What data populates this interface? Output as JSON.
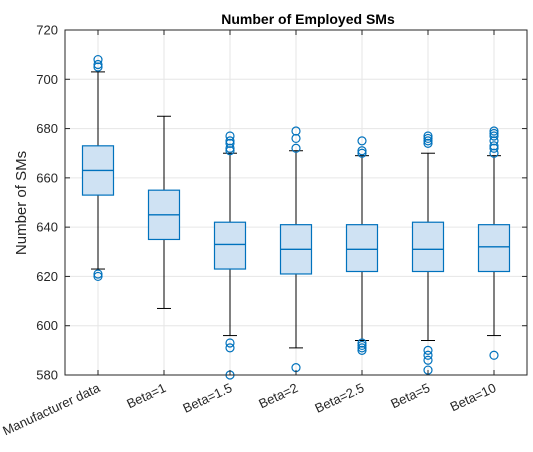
{
  "chart_data": {
    "type": "boxplot",
    "title": "Number of Employed SMs",
    "xlabel": "",
    "ylabel": "Number of SMs",
    "ylim": [
      580,
      720
    ],
    "yticks": [
      580,
      600,
      620,
      640,
      660,
      680,
      700,
      720
    ],
    "grid": true,
    "colors": {
      "box_edge": "#0072BD",
      "box_fill": "#CFE2F3",
      "whisker": "#000000",
      "median": "#0072BD",
      "outlier": "#0072BD",
      "grid": "#E6E6E6",
      "axis": "#262626"
    },
    "categories": [
      "Manufacturer data",
      "Beta=1",
      "Beta=1.5",
      "Beta=2",
      "Beta=2.5",
      "Beta=5",
      "Beta=10"
    ],
    "boxes": [
      {
        "q1": 653,
        "median": 663,
        "q3": 673,
        "whisker_low": 623,
        "whisker_high": 703,
        "outliers": [
          620,
          621,
          705,
          706,
          708
        ]
      },
      {
        "q1": 635,
        "median": 645,
        "q3": 655,
        "whisker_low": 607,
        "whisker_high": 685,
        "outliers": []
      },
      {
        "q1": 623,
        "median": 633,
        "q3": 642,
        "whisker_low": 596,
        "whisker_high": 670,
        "outliers": [
          580,
          591,
          593,
          671,
          672,
          674,
          675,
          677
        ]
      },
      {
        "q1": 621,
        "median": 631,
        "q3": 641,
        "whisker_low": 591,
        "whisker_high": 671,
        "outliers": [
          583,
          672,
          676,
          679
        ]
      },
      {
        "q1": 622,
        "median": 631,
        "q3": 641,
        "whisker_low": 594,
        "whisker_high": 669,
        "outliers": [
          590,
          591,
          592,
          593,
          670,
          671,
          675
        ]
      },
      {
        "q1": 622,
        "median": 631,
        "q3": 642,
        "whisker_low": 594,
        "whisker_high": 670,
        "outliers": [
          582,
          586,
          588,
          590,
          674,
          675,
          676,
          677
        ]
      },
      {
        "q1": 622,
        "median": 632,
        "q3": 641,
        "whisker_low": 596,
        "whisker_high": 669,
        "outliers": [
          588,
          670,
          672,
          673,
          675,
          677,
          678,
          679
        ]
      }
    ]
  }
}
